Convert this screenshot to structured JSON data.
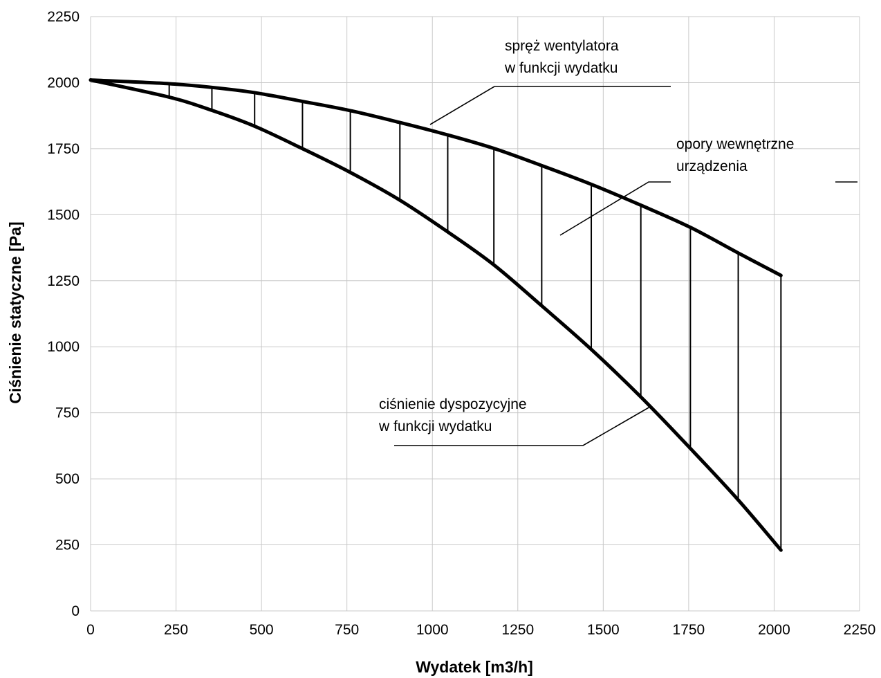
{
  "chart_data": {
    "type": "line",
    "xlabel": "Wydatek [m3/h]",
    "ylabel": "Ciśnienie statyczne [Pa]",
    "xlim": [
      0,
      2250
    ],
    "ylim": [
      0,
      2250
    ],
    "xticks": [
      0,
      250,
      500,
      750,
      1000,
      1250,
      1500,
      1750,
      2000,
      2250
    ],
    "yticks": [
      0,
      250,
      500,
      750,
      1000,
      1250,
      1500,
      1750,
      2000,
      2250
    ],
    "grid": true,
    "x": [
      0,
      230,
      355,
      480,
      620,
      760,
      905,
      1045,
      1180,
      1320,
      1465,
      1610,
      1755,
      1895,
      2020
    ],
    "series": [
      {
        "name": "spręż wentylatora w funkcji wydatku",
        "values": [
          2010,
          1996,
          1982,
          1962,
          1929,
          1894,
          1849,
          1802,
          1751,
          1686,
          1615,
          1536,
          1452,
          1355,
          1270
        ]
      },
      {
        "name": "ciśnienie dyspozycyjne w funkcji wydatku",
        "values": [
          2010,
          1945,
          1895,
          1835,
          1750,
          1660,
          1555,
          1435,
          1310,
          1155,
          990,
          810,
          615,
          420,
          230
        ]
      }
    ],
    "hatching_between_series": true,
    "annotations": [
      {
        "lines": [
          "spręż wentylatora",
          "w funkcji wydatku"
        ]
      },
      {
        "lines": [
          "opory wewnętrzne",
          "urządzenia"
        ]
      },
      {
        "lines": [
          "ciśnienie dyspozycyjne",
          "w funkcji wydatku"
        ]
      }
    ]
  }
}
